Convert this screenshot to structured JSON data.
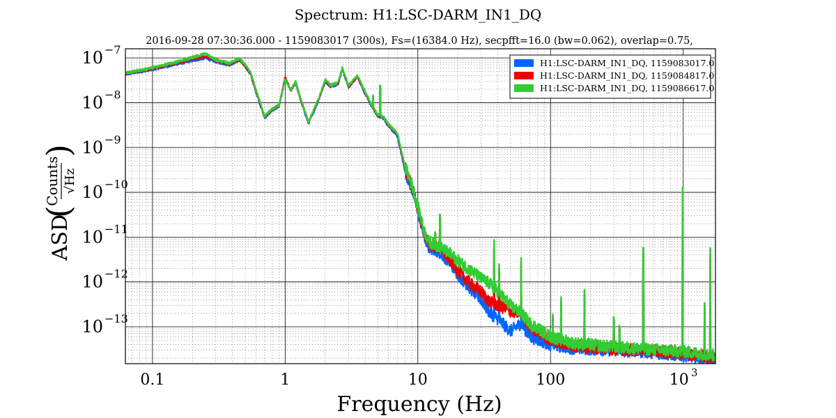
{
  "chart_data": {
    "type": "line",
    "title": "Spectrum: H1:LSC-DARM_IN1_DQ",
    "subtitle": "2016-09-28 07:30:36.000 - 1159083017 (300s), Fs=(16384.0 Hz), secpfft=16.0 (bw=0.062), overlap=0.75,",
    "xlabel": "Frequency (Hz)",
    "ylabel": {
      "prefix": "ASD",
      "numerator": "Counts",
      "denominator": "√Hz"
    },
    "x_scale": "log",
    "y_scale": "log",
    "xlim": [
      0.0625,
      1750
    ],
    "ylim": [
      1.5e-14,
      1.6e-07
    ],
    "grid": true,
    "legend_position": "top-right",
    "x_ticks": [
      {
        "value": 0.1,
        "label": "0.1"
      },
      {
        "value": 1,
        "label": "1"
      },
      {
        "value": 10,
        "label": "10"
      },
      {
        "value": 100,
        "label": "100"
      }
    ],
    "x_tick_power": {
      "value": 1000,
      "base": "10",
      "exp": "3"
    },
    "y_ticks": [
      {
        "value": 1e-07,
        "base": "10",
        "exp": "−7"
      },
      {
        "value": 1e-08,
        "base": "10",
        "exp": "−8"
      },
      {
        "value": 1e-09,
        "base": "10",
        "exp": "−9"
      },
      {
        "value": 1e-10,
        "base": "10",
        "exp": "−10"
      },
      {
        "value": 1e-11,
        "base": "10",
        "exp": "−11"
      },
      {
        "value": 1e-12,
        "base": "10",
        "exp": "−12"
      },
      {
        "value": 1e-13,
        "base": "10",
        "exp": "−13"
      }
    ],
    "series": [
      {
        "name": "H1:LSC-DARM_IN1_DQ, 1159083017.0",
        "color": "#0066ff",
        "points": [
          [
            0.0625,
            4.3e-08
          ],
          [
            0.1,
            5.5e-08
          ],
          [
            0.15,
            7.2e-08
          ],
          [
            0.25,
            1e-07
          ],
          [
            0.3,
            8.2e-08
          ],
          [
            0.38,
            7e-08
          ],
          [
            0.45,
            8.8e-08
          ],
          [
            0.5,
            6.5e-08
          ],
          [
            0.55,
            4.2e-08
          ],
          [
            0.6,
            1.8e-08
          ],
          [
            0.7,
            4.6e-09
          ],
          [
            0.8,
            6.8e-09
          ],
          [
            0.9,
            8.2e-09
          ],
          [
            1.0,
            3.5e-08
          ],
          [
            1.1,
            1.8e-08
          ],
          [
            1.2,
            2.8e-08
          ],
          [
            1.3,
            1.2e-08
          ],
          [
            1.5,
            3.4e-09
          ],
          [
            1.8,
            1.2e-08
          ],
          [
            2.0,
            3e-08
          ],
          [
            2.2,
            2.3e-08
          ],
          [
            2.5,
            2.6e-08
          ],
          [
            2.7,
            5.6e-08
          ],
          [
            3.0,
            2.2e-08
          ],
          [
            3.5,
            3.8e-08
          ],
          [
            4.0,
            1.6e-08
          ],
          [
            4.5,
            8e-09
          ],
          [
            5.0,
            5e-09
          ],
          [
            5.5,
            4.5e-09
          ],
          [
            6.0,
            3e-09
          ],
          [
            7.0,
            1.8e-09
          ],
          [
            8.0,
            3e-10
          ],
          [
            9.0,
            1.2e-10
          ],
          [
            10.0,
            4e-11
          ],
          [
            11.0,
            1.2e-11
          ],
          [
            12.0,
            6e-12
          ],
          [
            14.0,
            5e-12
          ],
          [
            17.0,
            3e-12
          ],
          [
            20.0,
            1.5e-12
          ],
          [
            25.0,
            7e-13
          ],
          [
            30.0,
            4e-13
          ],
          [
            35.0,
            2e-13
          ],
          [
            40.0,
            1.5e-13
          ],
          [
            50.0,
            8e-14
          ],
          [
            60.0,
            1.2e-13
          ],
          [
            70.0,
            6e-14
          ],
          [
            100.0,
            4e-14
          ],
          [
            150.0,
            3.3e-14
          ],
          [
            200.0,
            3.2e-14
          ],
          [
            300.0,
            3e-14
          ],
          [
            500.0,
            2.8e-14
          ],
          [
            700.0,
            2.5e-14
          ],
          [
            1000.0,
            2.3e-14
          ],
          [
            1500.0,
            2e-14
          ],
          [
            1750.0,
            2e-14
          ]
        ]
      },
      {
        "name": "H1:LSC-DARM_IN1_DQ, 1159084817.0",
        "color": "#ee0000",
        "points": [
          [
            0.0625,
            4.5e-08
          ],
          [
            0.1,
            5.8e-08
          ],
          [
            0.15,
            7.6e-08
          ],
          [
            0.25,
            1.1e-07
          ],
          [
            0.3,
            8.7e-08
          ],
          [
            0.38,
            7.3e-08
          ],
          [
            0.45,
            9.2e-08
          ],
          [
            0.5,
            6.8e-08
          ],
          [
            0.55,
            4.4e-08
          ],
          [
            0.6,
            1.9e-08
          ],
          [
            0.7,
            4.8e-09
          ],
          [
            0.8,
            7.1e-09
          ],
          [
            0.9,
            8.6e-09
          ],
          [
            1.0,
            3.7e-08
          ],
          [
            1.1,
            1.9e-08
          ],
          [
            1.2,
            2.9e-08
          ],
          [
            1.3,
            1.3e-08
          ],
          [
            1.5,
            3.6e-09
          ],
          [
            1.8,
            1.25e-08
          ],
          [
            2.0,
            3.1e-08
          ],
          [
            2.2,
            2.4e-08
          ],
          [
            2.5,
            2.7e-08
          ],
          [
            2.7,
            5.8e-08
          ],
          [
            3.0,
            2.3e-08
          ],
          [
            3.5,
            3.9e-08
          ],
          [
            4.0,
            1.7e-08
          ],
          [
            4.5,
            8.3e-09
          ],
          [
            5.0,
            5.2e-09
          ],
          [
            5.5,
            4.7e-09
          ],
          [
            6.0,
            3.2e-09
          ],
          [
            7.0,
            2e-09
          ],
          [
            8.0,
            3.5e-10
          ],
          [
            9.0,
            1.4e-10
          ],
          [
            10.0,
            4.5e-11
          ],
          [
            11.0,
            1.4e-11
          ],
          [
            12.0,
            7e-12
          ],
          [
            14.0,
            6e-12
          ],
          [
            17.0,
            3.5e-12
          ],
          [
            20.0,
            1.8e-12
          ],
          [
            25.0,
            9e-13
          ],
          [
            30.0,
            6e-13
          ],
          [
            35.0,
            3.5e-13
          ],
          [
            40.0,
            3e-13
          ],
          [
            50.0,
            2.2e-13
          ],
          [
            60.0,
            2e-13
          ],
          [
            70.0,
            1e-13
          ],
          [
            100.0,
            5e-14
          ],
          [
            150.0,
            3.8e-14
          ],
          [
            200.0,
            3.5e-14
          ],
          [
            300.0,
            3.2e-14
          ],
          [
            500.0,
            3e-14
          ],
          [
            700.0,
            2.8e-14
          ],
          [
            1000.0,
            2.6e-14
          ],
          [
            1500.0,
            2.2e-14
          ],
          [
            1750.0,
            2.1e-14
          ]
        ]
      },
      {
        "name": "H1:LSC-DARM_IN1_DQ, 1159086617.0",
        "color": "#33cc33",
        "points": [
          [
            0.0625,
            4.6e-08
          ],
          [
            0.1,
            6e-08
          ],
          [
            0.15,
            8e-08
          ],
          [
            0.25,
            1.25e-07
          ],
          [
            0.3,
            9e-08
          ],
          [
            0.38,
            7.6e-08
          ],
          [
            0.45,
            9.8e-08
          ],
          [
            0.5,
            7e-08
          ],
          [
            0.55,
            4.6e-08
          ],
          [
            0.6,
            2e-08
          ],
          [
            0.7,
            5e-09
          ],
          [
            0.8,
            7.4e-09
          ],
          [
            0.9,
            8.9e-09
          ],
          [
            1.0,
            3.3e-08
          ],
          [
            1.1,
            1.9e-08
          ],
          [
            1.2,
            3e-08
          ],
          [
            1.3,
            1.3e-08
          ],
          [
            1.5,
            3.7e-09
          ],
          [
            1.8,
            1.3e-08
          ],
          [
            2.0,
            3.2e-08
          ],
          [
            2.2,
            2.5e-08
          ],
          [
            2.5,
            2.8e-08
          ],
          [
            2.7,
            6e-08
          ],
          [
            3.0,
            2.4e-08
          ],
          [
            3.5,
            4e-08
          ],
          [
            4.0,
            1.8e-08
          ],
          [
            4.5,
            8.6e-09
          ],
          [
            5.0,
            5.4e-09
          ],
          [
            5.5,
            4.8e-09
          ],
          [
            6.0,
            3.3e-09
          ],
          [
            7.0,
            2.1e-09
          ],
          [
            8.0,
            3.8e-10
          ],
          [
            9.0,
            1.5e-10
          ],
          [
            10.0,
            5e-11
          ],
          [
            11.0,
            1.6e-11
          ],
          [
            12.0,
            8e-12
          ],
          [
            14.0,
            6.5e-12
          ],
          [
            17.0,
            4.5e-12
          ],
          [
            20.0,
            3e-12
          ],
          [
            25.0,
            1.8e-12
          ],
          [
            30.0,
            1.2e-12
          ],
          [
            35.0,
            9e-13
          ],
          [
            40.0,
            6e-13
          ],
          [
            50.0,
            3e-13
          ],
          [
            60.0,
            2e-13
          ],
          [
            70.0,
            1.2e-13
          ],
          [
            100.0,
            6e-14
          ],
          [
            150.0,
            4.3e-14
          ],
          [
            200.0,
            4e-14
          ],
          [
            300.0,
            3.5e-14
          ],
          [
            500.0,
            3.2e-14
          ],
          [
            700.0,
            3e-14
          ],
          [
            1000.0,
            2.8e-14
          ],
          [
            1500.0,
            2.4e-14
          ],
          [
            1750.0,
            2.3e-14
          ]
        ]
      }
    ],
    "spectral_lines": [
      {
        "f": 4.6,
        "top": 1.6e-08
      },
      {
        "f": 5.2,
        "top": 3e-08
      },
      {
        "f": 13.5,
        "top": 1.4e-11
      },
      {
        "f": 14.7,
        "top": 4e-11
      },
      {
        "f": 15.1,
        "top": 6e-12
      },
      {
        "f": 37.5,
        "top": 1.2e-11
      },
      {
        "f": 41.0,
        "top": 3e-12
      },
      {
        "f": 60.0,
        "top": 5e-12
      },
      {
        "f": 104.0,
        "top": 2.2e-13
      },
      {
        "f": 120.0,
        "top": 6e-13
      },
      {
        "f": 180.0,
        "top": 1e-12
      },
      {
        "f": 300.0,
        "top": 2e-13
      },
      {
        "f": 331.0,
        "top": 1.2e-13
      },
      {
        "f": 500.0,
        "top": 1.2e-11
      },
      {
        "f": 990.0,
        "top": 4e-10
      },
      {
        "f": 1450.0,
        "top": 5e-13
      },
      {
        "f": 1600.0,
        "top": 1.2e-11
      }
    ]
  }
}
